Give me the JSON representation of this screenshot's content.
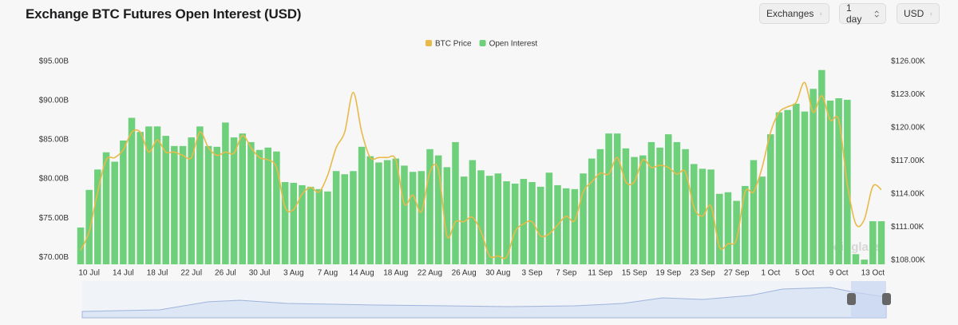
{
  "header": {
    "title": "Exchange BTC Futures Open Interest (USD)",
    "controls": [
      "Exchanges",
      "1 day",
      "USD"
    ]
  },
  "chart_data": {
    "type": "bar",
    "watermark": "coinglass",
    "grid": false,
    "legend": "top",
    "categories": [
      null,
      "10 Jul",
      null,
      null,
      null,
      "14 Jul",
      null,
      null,
      null,
      "18 Jul",
      null,
      null,
      null,
      "22 Jul",
      null,
      null,
      null,
      "26 Jul",
      null,
      null,
      null,
      "30 Jul",
      null,
      null,
      null,
      "3 Aug",
      null,
      null,
      null,
      "7 Aug",
      null,
      null,
      null,
      "14 Aug",
      null,
      null,
      null,
      "18 Aug",
      null,
      null,
      null,
      "22 Aug",
      null,
      null,
      null,
      "26 Aug",
      null,
      null,
      null,
      "30 Aug",
      null,
      null,
      null,
      "3 Sep",
      null,
      null,
      null,
      "7 Sep",
      null,
      null,
      null,
      "11 Sep",
      null,
      null,
      null,
      "15 Sep",
      null,
      null,
      null,
      "19 Sep",
      null,
      null,
      null,
      "23 Sep",
      null,
      null,
      null,
      "27 Sep",
      null,
      null,
      null,
      "1 Oct",
      null,
      null,
      null,
      "5 Oct",
      null,
      null,
      null,
      "9 Oct",
      null,
      null,
      null,
      "13 Oct",
      null
    ],
    "series": [
      {
        "name": "BTC Price",
        "type": "line",
        "axis": "y2",
        "color": "#e9b949",
        "values": [
          108.9,
          110.6,
          114.2,
          117.1,
          117.3,
          118.0,
          119.6,
          119.6,
          117.8,
          118.9,
          117.8,
          117.8,
          117.5,
          117.3,
          119.6,
          118.2,
          117.5,
          117.8,
          117.7,
          119.3,
          118.2,
          117.3,
          117.1,
          116.4,
          112.8,
          112.6,
          114.0,
          114.6,
          114.2,
          115.7,
          118.2,
          119.6,
          123.2,
          119.6,
          117.3,
          117.3,
          117.3,
          117.1,
          113.1,
          113.9,
          112.4,
          116.0,
          116.2,
          110.2,
          111.5,
          111.5,
          111.9,
          110.6,
          108.4,
          108.4,
          108.3,
          110.6,
          111.3,
          111.5,
          110.2,
          110.4,
          111.2,
          112.0,
          111.6,
          114.2,
          115.1,
          115.9,
          115.8,
          117.3,
          115.1,
          115.1,
          117.1,
          116.4,
          116.6,
          116.4,
          115.8,
          116.0,
          112.8,
          112.0,
          112.9,
          109.2,
          109.5,
          109.9,
          114.2,
          114.2,
          116.4,
          119.6,
          121.4,
          121.9,
          122.3,
          124.1,
          121.4,
          122.9,
          120.7,
          120.7,
          114.9,
          111.3,
          111.7,
          114.7,
          114.4
        ]
      },
      {
        "name": "Open Interest",
        "type": "bar",
        "color": "#6fd07c",
        "values": [
          73.8,
          78.6,
          81.2,
          83.4,
          82.2,
          84.9,
          87.8,
          86.0,
          86.7,
          86.7,
          85.5,
          84.2,
          84.2,
          85.3,
          86.7,
          84.2,
          84.1,
          87.2,
          85.3,
          85.8,
          84.7,
          83.7,
          84.0,
          83.5,
          79.6,
          79.5,
          79.2,
          79.0,
          78.7,
          78.4,
          81.0,
          80.6,
          81.0,
          84.1,
          82.9,
          82.1,
          82.4,
          82.6,
          81.7,
          80.9,
          81.0,
          83.8,
          83.0,
          81.5,
          84.7,
          80.3,
          82.4,
          81.1,
          80.4,
          80.7,
          79.7,
          79.4,
          80.0,
          79.6,
          79.0,
          80.8,
          79.2,
          78.8,
          78.7,
          80.7,
          82.6,
          83.8,
          85.8,
          85.8,
          83.9,
          82.8,
          83.0,
          84.7,
          84.0,
          85.7,
          84.7,
          83.8,
          81.9,
          81.3,
          81.2,
          78.1,
          78.3,
          77.2,
          79.1,
          82.4,
          80.3,
          85.7,
          88.5,
          88.8,
          89.6,
          88.6,
          91.5,
          93.9,
          90.0,
          90.3,
          90.1,
          70.4,
          69.7,
          74.6,
          74.6
        ]
      }
    ],
    "ylim": [
      69.1,
      95.5
    ],
    "yticks": [
      {
        "value": 70,
        "label": "$70.00B"
      },
      {
        "value": 75,
        "label": "$75.00B"
      },
      {
        "value": 80,
        "label": "$80.00B"
      },
      {
        "value": 85,
        "label": "$85.00B"
      },
      {
        "value": 90,
        "label": "$90.00B"
      },
      {
        "value": 95,
        "label": "$95.00B"
      }
    ],
    "y2lim": [
      107.64,
      126.36
    ],
    "y2ticks": [
      {
        "value": 108,
        "label": "$108.00K"
      },
      {
        "value": 111,
        "label": "$111.00K"
      },
      {
        "value": 114,
        "label": "$114.00K"
      },
      {
        "value": 117,
        "label": "$117.00K"
      },
      {
        "value": 120,
        "label": "$120.00K"
      },
      {
        "value": 123,
        "label": "$123.00K"
      },
      {
        "value": 126,
        "label": "$126.00K"
      }
    ]
  }
}
